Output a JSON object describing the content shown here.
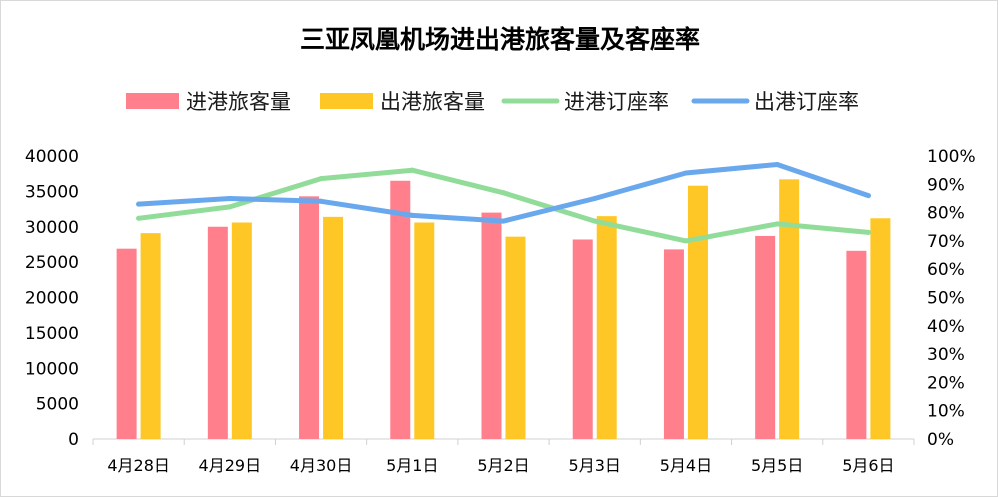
{
  "chart_data": {
    "type": "bar",
    "title": "三亚凤凰机场进出港旅客量及客座率",
    "categories": [
      "4月28日",
      "4月29日",
      "4月30日",
      "5月1日",
      "5月2日",
      "5月3日",
      "5月4日",
      "5月5日",
      "5月6日"
    ],
    "series": [
      {
        "name": "进港旅客量",
        "type": "bar",
        "axis": "left",
        "color": "#ff7f8c",
        "values": [
          26900,
          30000,
          34300,
          36500,
          32000,
          28200,
          26800,
          28700,
          26600
        ]
      },
      {
        "name": "出港旅客量",
        "type": "bar",
        "axis": "left",
        "color": "#ffc726",
        "values": [
          29100,
          30600,
          31400,
          30600,
          28600,
          31500,
          35800,
          36700,
          31200
        ]
      },
      {
        "name": "进港订座率",
        "type": "line",
        "axis": "right",
        "color": "#92dc9a",
        "values": [
          0.78,
          0.82,
          0.92,
          0.95,
          0.87,
          0.77,
          0.7,
          0.76,
          0.73
        ]
      },
      {
        "name": "出港订座率",
        "type": "line",
        "axis": "right",
        "color": "#6aa8ee",
        "values": [
          0.83,
          0.85,
          0.84,
          0.79,
          0.77,
          0.85,
          0.94,
          0.97,
          0.86
        ]
      }
    ],
    "y_left": {
      "min": 0,
      "max": 40000,
      "ticks": [
        "40000",
        "35000",
        "30000",
        "25000",
        "20000",
        "15000",
        "10000",
        "5000",
        "0"
      ]
    },
    "y_right": {
      "min": 0,
      "max": 1,
      "ticks": [
        "100%",
        "90%",
        "80%",
        "70%",
        "60%",
        "50%",
        "40%",
        "30%",
        "20%",
        "10%",
        "0%"
      ]
    },
    "grid": false,
    "legend_position": "top"
  }
}
